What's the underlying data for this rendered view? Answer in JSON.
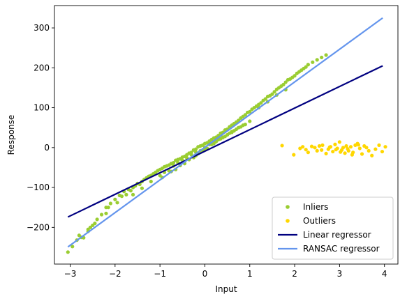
{
  "chart_data": {
    "type": "scatter",
    "xlabel": "Input",
    "ylabel": "Response",
    "xlim": [
      -3.35,
      4.3
    ],
    "ylim": [
      -292,
      356
    ],
    "xticks": [
      -3,
      -2,
      -1,
      0,
      1,
      2,
      3,
      4
    ],
    "yticks": [
      -200,
      -100,
      0,
      100,
      200,
      300
    ],
    "xtick_labels": [
      "−3",
      "−2",
      "−1",
      "0",
      "1",
      "2",
      "3",
      "4"
    ],
    "ytick_labels": [
      "−200",
      "−100",
      "0",
      "100",
      "200",
      "300"
    ],
    "grid": false,
    "legend_position": "lower-right",
    "series": [
      {
        "name": "Inliers",
        "kind": "scatter",
        "color": "#9acd32",
        "x": [
          -3.05,
          -2.95,
          -2.85,
          -2.8,
          -2.75,
          -2.7,
          -2.6,
          -2.55,
          -2.5,
          -2.45,
          -2.4,
          -2.3,
          -2.2,
          -2.15,
          -2.1,
          -2.0,
          -1.95,
          -1.9,
          -1.85,
          -1.8,
          -1.75,
          -1.7,
          -1.65,
          -1.6,
          -1.55,
          -1.5,
          -1.45,
          -1.4,
          -1.35,
          -1.3,
          -1.25,
          -1.2,
          -1.15,
          -1.1,
          -1.05,
          -1.0,
          -0.95,
          -0.9,
          -0.85,
          -0.8,
          -0.75,
          -0.7,
          -0.65,
          -0.6,
          -0.55,
          -0.5,
          -0.45,
          -0.4,
          -0.35,
          -0.3,
          -0.25,
          -0.2,
          -0.15,
          -0.1,
          -0.05,
          0.0,
          0.05,
          0.1,
          0.15,
          0.2,
          0.25,
          0.3,
          0.35,
          0.4,
          0.45,
          0.5,
          0.55,
          0.6,
          0.65,
          0.7,
          0.75,
          0.8,
          0.85,
          0.9,
          0.95,
          1.0,
          1.05,
          1.1,
          1.15,
          1.2,
          1.25,
          1.3,
          1.35,
          1.4,
          1.45,
          1.5,
          1.55,
          1.6,
          1.65,
          1.7,
          1.75,
          1.8,
          1.85,
          1.9,
          1.95,
          2.0,
          2.05,
          2.1,
          2.15,
          2.2,
          2.25,
          2.3,
          2.4,
          2.5,
          2.6,
          2.7,
          -1.0,
          -0.9,
          -0.8,
          -0.7,
          -0.6,
          -0.5,
          -0.4,
          -0.3,
          -0.2,
          -0.1,
          0.0,
          0.1,
          0.2,
          0.3,
          0.4,
          0.5,
          0.6,
          0.7,
          0.8,
          0.9,
          1.0,
          -0.95,
          -0.75,
          -0.55,
          -0.35,
          -0.15,
          0.05,
          0.25,
          0.45,
          0.65,
          0.85,
          -0.65,
          -0.45,
          -0.25,
          -0.05,
          0.15,
          0.35,
          0.55,
          0.75,
          1.2,
          1.4,
          1.6,
          1.8,
          -1.6,
          -1.4,
          -1.2,
          -2.2,
          -2.6,
          -0.2,
          0.0,
          0.2,
          0.4,
          0.6
        ],
        "y": [
          -262,
          -248,
          -232,
          -220,
          -225,
          -226,
          -210,
          -200,
          -195,
          -190,
          -180,
          -168,
          -150,
          -150,
          -140,
          -130,
          -138,
          -120,
          -122,
          -110,
          -118,
          -105,
          -108,
          -100,
          -96,
          -90,
          -92,
          -85,
          -80,
          -76,
          -72,
          -70,
          -66,
          -62,
          -58,
          -55,
          -52,
          -48,
          -46,
          -44,
          -40,
          -38,
          -32,
          -30,
          -28,
          -24,
          -22,
          -18,
          -14,
          -12,
          -6,
          -4,
          2,
          4,
          6,
          10,
          12,
          16,
          20,
          24,
          26,
          30,
          36,
          38,
          44,
          46,
          52,
          56,
          60,
          64,
          68,
          74,
          78,
          82,
          88,
          90,
          96,
          100,
          104,
          108,
          112,
          118,
          122,
          128,
          130,
          134,
          140,
          146,
          150,
          154,
          158,
          164,
          170,
          172,
          176,
          180,
          186,
          190,
          194,
          198,
          202,
          208,
          214,
          220,
          226,
          232,
          -70,
          -62,
          -58,
          -46,
          -38,
          -32,
          -26,
          -18,
          -12,
          -8,
          0,
          8,
          12,
          20,
          26,
          32,
          40,
          46,
          52,
          58,
          66,
          -75,
          -60,
          -45,
          -30,
          -15,
          -2,
          15,
          28,
          42,
          56,
          -55,
          -40,
          -25,
          -8,
          8,
          22,
          36,
          50,
          100,
          115,
          132,
          145,
          -118,
          -102,
          -85,
          -165,
          -205,
          -20,
          -5,
          10,
          25,
          38
        ]
      },
      {
        "name": "Outliers",
        "kind": "scatter",
        "color": "#ffd700",
        "x": [
          1.72,
          1.98,
          2.12,
          2.18,
          2.25,
          2.3,
          2.38,
          2.45,
          2.5,
          2.55,
          2.62,
          2.7,
          2.75,
          2.8,
          2.85,
          2.9,
          2.95,
          3.0,
          3.05,
          3.08,
          3.12,
          3.15,
          3.2,
          3.25,
          3.3,
          3.35,
          3.4,
          3.45,
          3.5,
          3.55,
          3.6,
          3.65,
          3.72,
          3.8,
          3.88,
          3.95,
          4.02,
          2.6,
          2.78,
          3.02,
          3.18,
          3.42,
          3.28,
          2.92
        ],
        "y": [
          5,
          -18,
          -2,
          2,
          -5,
          -12,
          3,
          0,
          -8,
          4,
          6,
          -15,
          -4,
          2,
          -10,
          8,
          -2,
          14,
          -6,
          0,
          -14,
          4,
          -8,
          2,
          -12,
          6,
          10,
          -2,
          -16,
          4,
          0,
          -8,
          -20,
          -4,
          6,
          -10,
          2,
          -6,
          1,
          -11,
          -3,
          7,
          -18,
          -5
        ]
      },
      {
        "name": "Linear regressor",
        "kind": "line",
        "color": "#000080",
        "x": [
          -3.05,
          3.96
        ],
        "y": [
          -174,
          205
        ]
      },
      {
        "name": "RANSAC regressor",
        "kind": "line",
        "color": "#6495ed",
        "x": [
          -3.05,
          3.96
        ],
        "y": [
          -249,
          325
        ]
      }
    ]
  }
}
